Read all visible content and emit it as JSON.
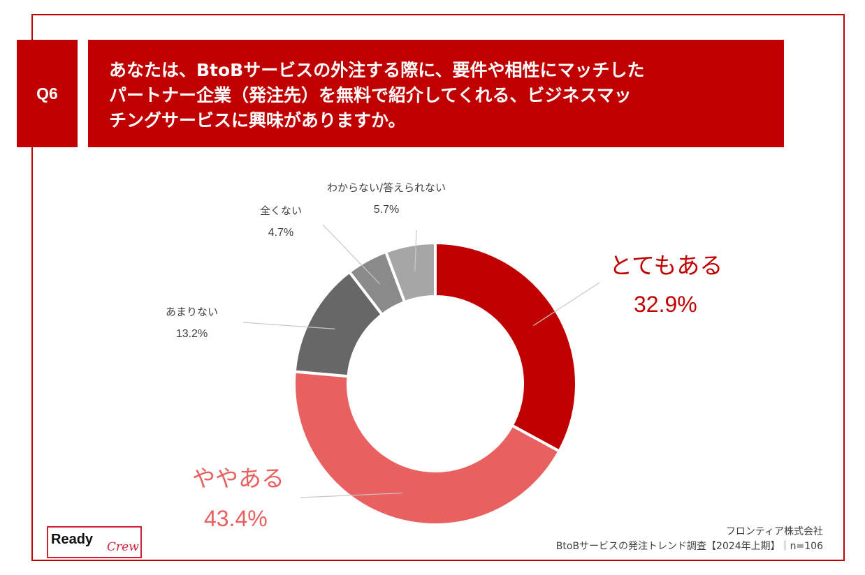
{
  "badge": "Q6",
  "question": "あなたは、BtoBサービスの外注する際に、要件や相性にマッチした\nパートナー企業（発注先）を無料で紹介してくれる、ビジネスマッ\nチングサービスに興味がありますか。",
  "colors": {
    "brand": "#c00000",
    "slice_1": "#c00000",
    "slice_2": "#e86060",
    "slice_3": "#676767",
    "slice_4": "#8a8a8a",
    "slice_5": "#a6a6a6"
  },
  "chart_data": {
    "type": "pie",
    "style": "donut",
    "categories": [
      "とてもある",
      "ややある",
      "あまりない",
      "全くない",
      "わからない/答えられない"
    ],
    "values": [
      32.9,
      43.4,
      13.2,
      4.7,
      5.7
    ],
    "value_labels": [
      "32.9%",
      "43.4%",
      "13.2%",
      "4.7%",
      "5.7%"
    ]
  },
  "footer": {
    "company": "フロンティア株式会社",
    "survey": "BtoBサービスの発注トレンド調査【2024年上期】｜n=106"
  },
  "logo": {
    "word": "Ready",
    "script": "Crew"
  }
}
